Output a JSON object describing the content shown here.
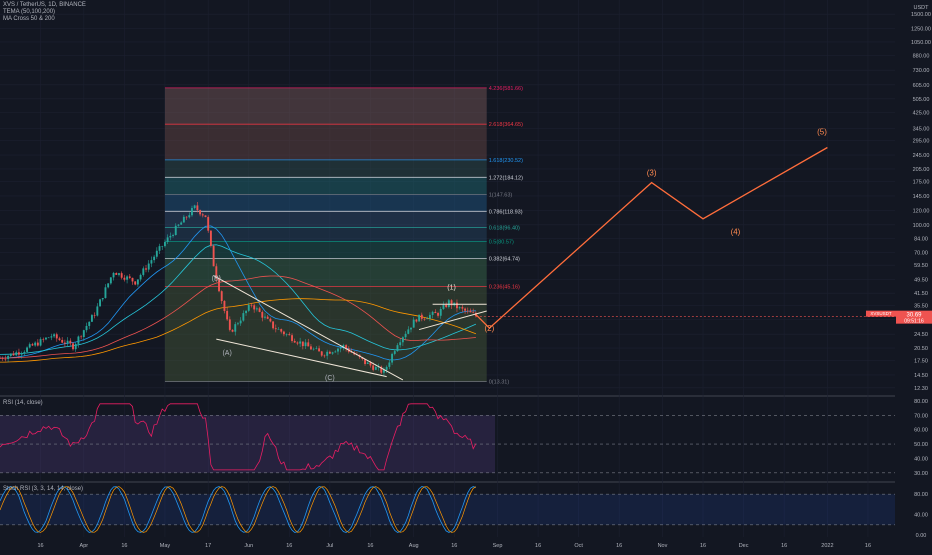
{
  "header": {
    "symbol_line": "XVS / TetherUS, 1D, BINANCE",
    "indicators": [
      "TEMA (50,100,200)",
      "MA Cross 50 & 200"
    ]
  },
  "axis": {
    "currency": "USDT",
    "price_ticks": [
      "1500.00",
      "1250.00",
      "1050.00",
      "880.00",
      "730.00",
      "605.00",
      "505.00",
      "425.00",
      "345.00",
      "295.00",
      "245.00",
      "205.00",
      "175.00",
      "145.00",
      "120.00",
      "100.00",
      "84.00",
      "70.00",
      "59.50",
      "49.50",
      "41.50",
      "35.50",
      "29.50",
      "24.50",
      "20.50",
      "17.50",
      "14.50",
      "12.30"
    ],
    "time_ticks": [
      "16",
      "Apr",
      "16",
      "May",
      "17",
      "Jun",
      "16",
      "Jul",
      "16",
      "Aug",
      "16",
      "Sep",
      "16",
      "Oct",
      "16",
      "Nov",
      "16",
      "Dec",
      "16",
      "2022",
      "16"
    ]
  },
  "badges": {
    "last_price": "30.69",
    "ticker": "XVSUSDT",
    "countdown": "09:51:16"
  },
  "rsi": {
    "title": "RSI (14, close)",
    "ticks": [
      "80.00",
      "70.00",
      "60.00",
      "50.00",
      "40.00",
      "30.00"
    ]
  },
  "stoch": {
    "title": "Stoch RSI (3, 3, 14, 14, close)",
    "ticks": [
      "80.00",
      "40.00",
      "0.00"
    ]
  },
  "chart_data": {
    "type": "candlestick",
    "symbol": "XVS/USDT",
    "interval": "1D",
    "exchange": "BINANCE",
    "ylim": [
      11.5,
      1800
    ],
    "yscale": "log",
    "xrange": [
      "2021-03-01",
      "2022-01-26"
    ],
    "fibonacci": [
      {
        "ratio": "4.236",
        "price": 581.66,
        "label": "4.236(581.66)",
        "color": "#e91e63"
      },
      {
        "ratio": "2.618",
        "price": 364.65,
        "label": "2.618(364.65)",
        "color": "#f23645"
      },
      {
        "ratio": "1.618",
        "price": 230.52,
        "label": "1.618(230.52)",
        "color": "#2196f3"
      },
      {
        "ratio": "1.272",
        "price": 184.12,
        "label": "1.272(184.12)",
        "color": "#d1d4dc"
      },
      {
        "ratio": "1",
        "price": 147.63,
        "label": "1(147.63)",
        "color": "#787b86"
      },
      {
        "ratio": "0.786",
        "price": 118.93,
        "label": "0.786(118.93)",
        "color": "#d1d4dc"
      },
      {
        "ratio": "0.618",
        "price": 96.4,
        "label": "0.618(96.40)",
        "color": "#26a69a"
      },
      {
        "ratio": "0.5",
        "price": 80.57,
        "label": "0.5(80.57)",
        "color": "#089981"
      },
      {
        "ratio": "0.382",
        "price": 64.74,
        "label": "0.382(64.74)",
        "color": "#d1d4dc"
      },
      {
        "ratio": "0.236",
        "price": 45.16,
        "label": "0.236(45.16)",
        "color": "#f23645"
      },
      {
        "ratio": "0",
        "price": 13.31,
        "label": "0(13.31)",
        "color": "#787b86"
      }
    ],
    "wave_labels": [
      {
        "label": "(B)",
        "date": "2021-05-20",
        "price": 49.0
      },
      {
        "label": "(A)",
        "date": "2021-05-24",
        "price": 18.7
      },
      {
        "label": "(C)",
        "date": "2021-07-01",
        "price": 13.6
      },
      {
        "label": "(1)",
        "date": "2021-08-15",
        "price": 43.5
      },
      {
        "label": "(2)",
        "date": "2021-08-29",
        "price": 25.5
      },
      {
        "label": "(3)",
        "date": "2021-10-28",
        "price": 188
      },
      {
        "label": "(4)",
        "date": "2021-11-28",
        "price": 88
      },
      {
        "label": "(5)",
        "date": "2021-12-30",
        "price": 320
      }
    ],
    "projection": [
      {
        "date": "2021-08-24",
        "price": 31.5
      },
      {
        "date": "2021-08-29",
        "price": 26.5
      },
      {
        "date": "2021-10-28",
        "price": 172
      },
      {
        "date": "2021-11-16",
        "price": 108
      },
      {
        "date": "2022-01-01",
        "price": 270
      }
    ],
    "last_price": 30.69
  }
}
